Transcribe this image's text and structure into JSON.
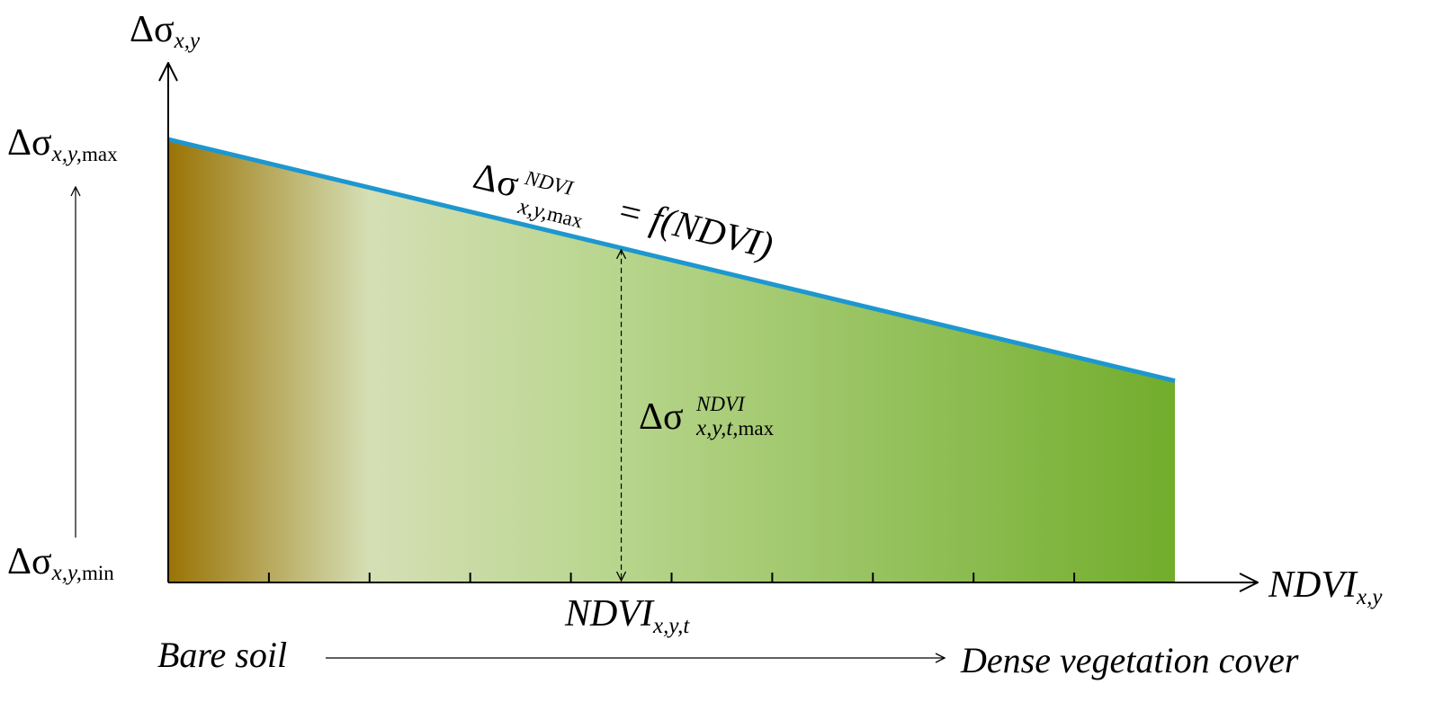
{
  "colors": {
    "soil": "#9a7305",
    "pale": "#d5dfb5",
    "green_mid": "#b7d58c",
    "green_dense": "#72ad2c",
    "envelope_line": "#1d97cf",
    "axis": "#000000"
  },
  "labels": {
    "y_axis": {
      "base": "Δσ",
      "sub": "x,y"
    },
    "y_max": {
      "base": "Δσ",
      "sub_ital": "x,y,",
      "sub_rom": "max"
    },
    "y_min": {
      "base": "Δσ",
      "sub_ital": "x,y,",
      "sub_rom": "min"
    },
    "envelope": {
      "base": "Δσ",
      "sup": "NDVI",
      "sub_ital": "x,y,",
      "sub_rom": "max",
      "rest": " = f(NDVI)"
    },
    "point_delta": {
      "base": "Δσ",
      "sup": "NDVI",
      "sub_ital": "x,y,t,",
      "sub_rom": "max"
    },
    "x_axis": {
      "base": "NDVI",
      "sub": "x,y"
    },
    "x_point": {
      "base": "NDVI",
      "sub": "x,y,t"
    },
    "bare_soil": "Bare soil",
    "dense_vegetation": "Dense vegetation cover"
  },
  "chart_data": {
    "type": "line",
    "x_ticks_count": 10,
    "envelope": {
      "y_at_min_ndvi": 1.0,
      "y_at_max_ndvi": 0.455
    },
    "point_x_fraction": 0.45
  }
}
